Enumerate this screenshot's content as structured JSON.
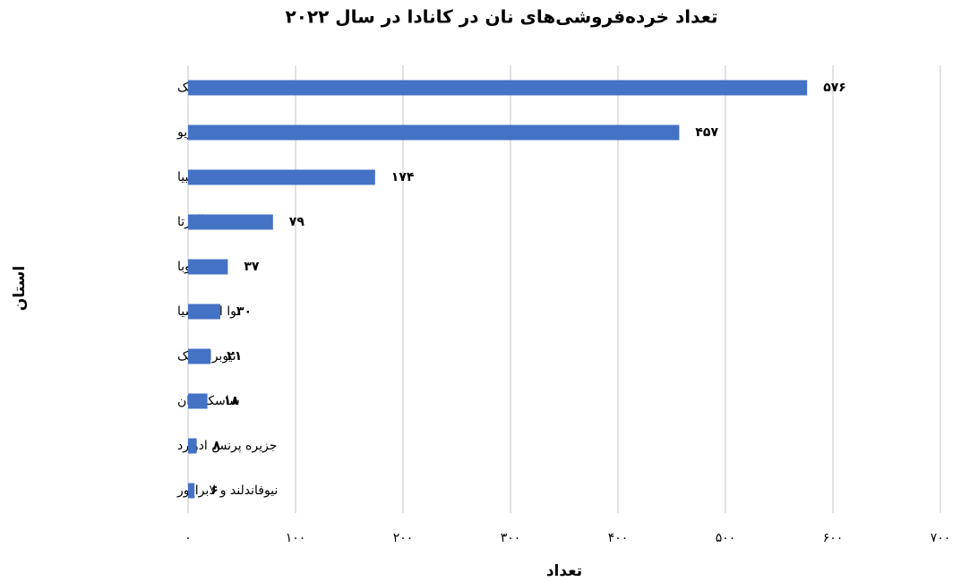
{
  "chart_data": {
    "type": "barh",
    "title": "تعداد خرده‌فروشی‌های نان در کانادا در سال ۲۰۲۲",
    "x_label": "تعداد",
    "y_label": "استان",
    "categories": [
      "کبک",
      "انتاریو",
      "بریتیش کلمبیا",
      "آلبرتا",
      "مانیتوبا",
      "نوا اسکوشیا",
      "نیوبرانزویک",
      "ساسکاچوان",
      "جزیره پرنس ادوارد",
      "نیوفاندلند و لابرادور"
    ],
    "values": [
      576,
      457,
      174,
      79,
      37,
      30,
      21,
      18,
      8,
      6
    ],
    "value_labels": [
      "۵۷۶",
      "۴۵۷",
      "۱۷۴",
      "۷۹",
      "۳۷",
      "۳۰",
      "۲۱",
      "۱۸",
      "۸",
      "۶"
    ],
    "color": "#4472c4",
    "xlim": [
      0,
      700
    ],
    "xticks": [
      {
        "value": 0,
        "label": "۰"
      },
      {
        "value": 100,
        "label": "۱۰۰"
      },
      {
        "value": 200,
        "label": "۲۰۰"
      },
      {
        "value": 300,
        "label": "۳۰۰"
      },
      {
        "value": 400,
        "label": "۴۰۰"
      },
      {
        "value": 500,
        "label": "۵۰۰"
      },
      {
        "value": 600,
        "label": "۶۰۰"
      },
      {
        "value": 700,
        "label": "۷۰۰"
      }
    ],
    "grid": true
  }
}
